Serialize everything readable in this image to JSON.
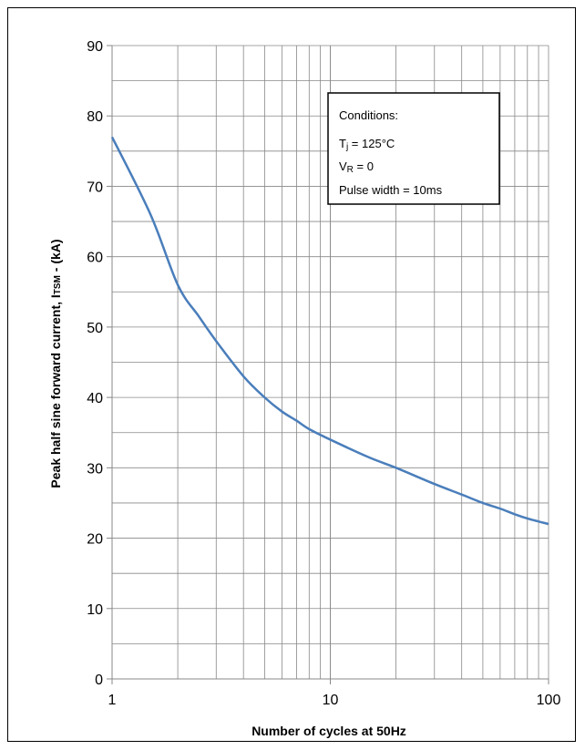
{
  "chart_data": {
    "type": "line",
    "title": "",
    "xlabel": "Number of cycles at 50Hz",
    "ylabel": {
      "main": "Peak half sine forward current, I",
      "sub": "TSM",
      "tail": " - (kA)"
    },
    "x_scale": "log",
    "xlim": [
      1,
      100
    ],
    "ylim": [
      0,
      90
    ],
    "x_ticks": [
      1,
      10,
      100
    ],
    "x_tick_labels": [
      "1",
      "10",
      "100"
    ],
    "y_ticks": [
      0,
      10,
      20,
      30,
      40,
      50,
      60,
      70,
      80,
      90
    ],
    "y_tick_labels": [
      "0",
      "10",
      "20",
      "30",
      "40",
      "50",
      "60",
      "70",
      "80",
      "90"
    ],
    "grid": true,
    "series": [
      {
        "color": "#4a7ebb",
        "x": [
          1,
          1.5,
          2,
          2.5,
          3,
          4,
          5,
          6,
          7,
          8,
          10,
          15,
          20,
          30,
          40,
          50,
          60,
          70,
          80,
          100
        ],
        "y": [
          77,
          66,
          56,
          51.5,
          48,
          43,
          40,
          38,
          36.7,
          35.5,
          34,
          31.5,
          30,
          27.7,
          26.2,
          25,
          24.2,
          23.4,
          22.8,
          22
        ]
      }
    ],
    "annotation": {
      "heading": "Conditions:",
      "line1": {
        "pre": "T",
        "sub": "j",
        "post": " = 125°C"
      },
      "line2": {
        "pre": "V",
        "sub": "R",
        "post": " = 0"
      },
      "line3": "Pulse width = 10ms"
    }
  }
}
